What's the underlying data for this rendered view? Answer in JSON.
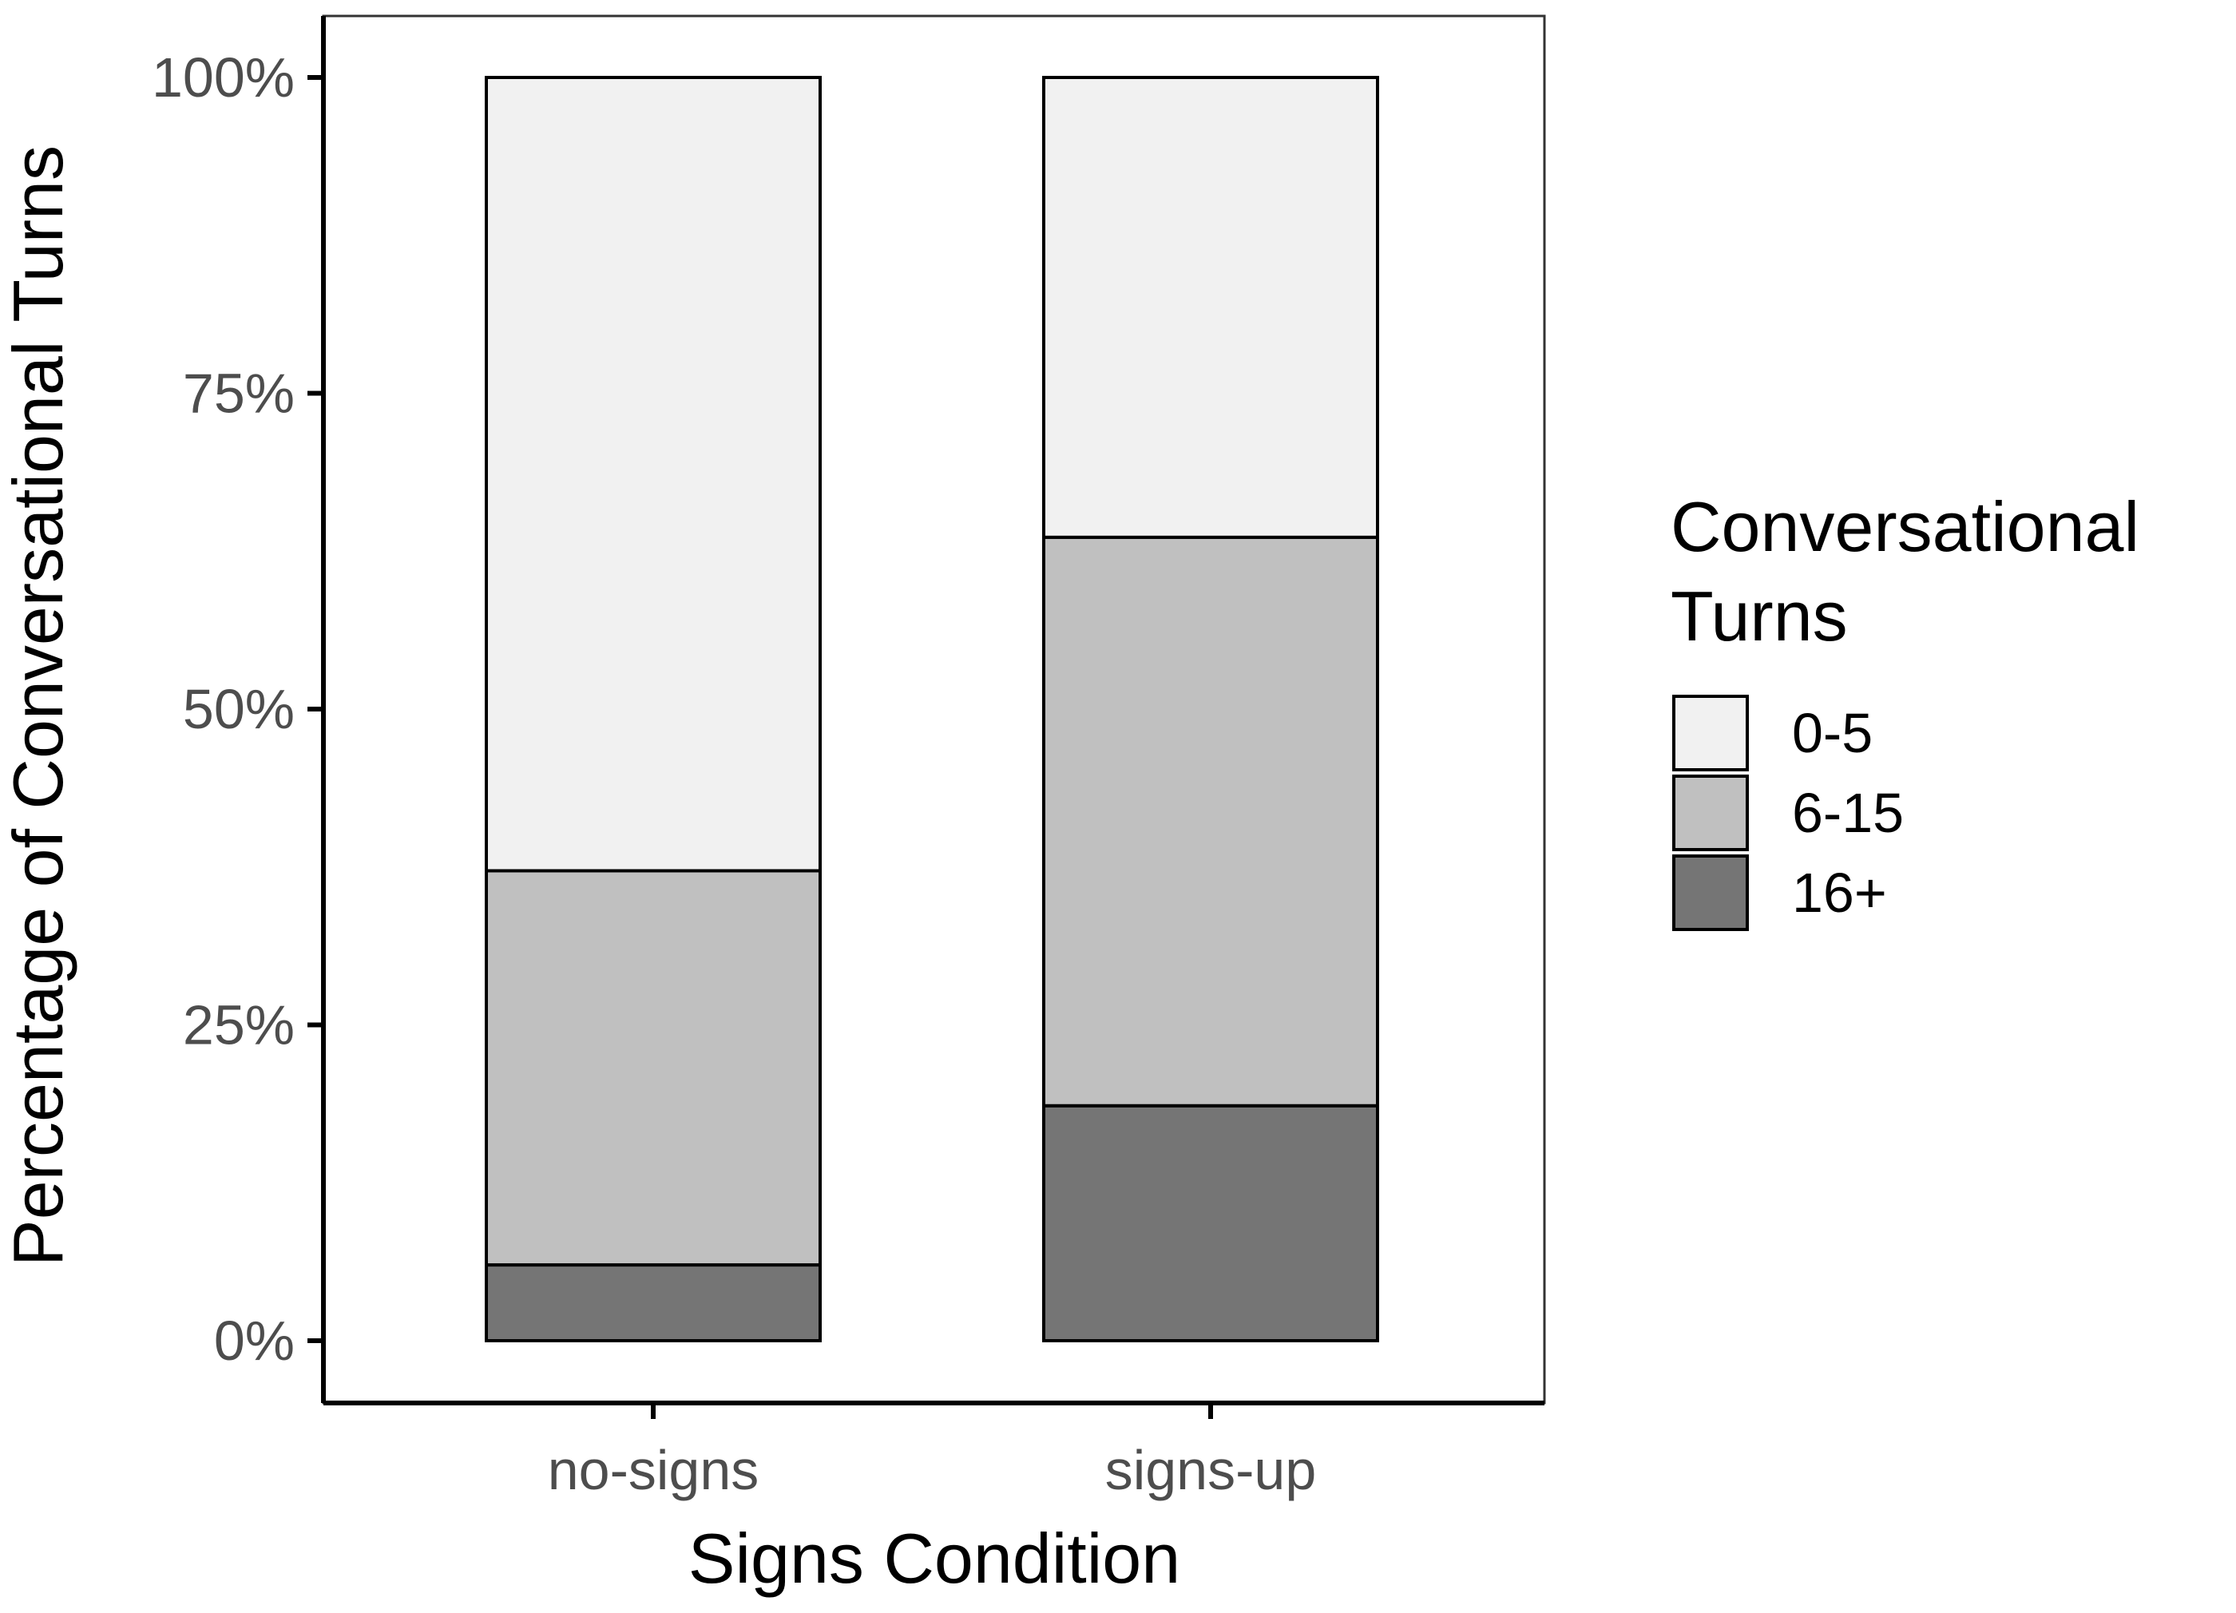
{
  "chart_data": {
    "type": "bar",
    "stacked": true,
    "orientation": "vertical",
    "normalized_to_percent": true,
    "categories": [
      "no-signs",
      "signs-up"
    ],
    "series": [
      {
        "name": "16+",
        "values": [
          6,
          18.6
        ],
        "color": "#757575"
      },
      {
        "name": "6-15",
        "values": [
          31.2,
          45
        ],
        "color": "#c0c0c0"
      },
      {
        "name": "0-5",
        "values": [
          62.8,
          36.4
        ],
        "color": "#f1f1f1"
      }
    ],
    "xlabel": "Signs Condition",
    "ylabel": "Percentage of Conversational Turns",
    "ylim": [
      0,
      100
    ],
    "y_ticks": [
      {
        "value": 0,
        "label": "0%"
      },
      {
        "value": 25,
        "label": "25%"
      },
      {
        "value": 50,
        "label": "50%"
      },
      {
        "value": 75,
        "label": "75%"
      },
      {
        "value": 100,
        "label": "100%"
      }
    ],
    "grid": false,
    "legend": {
      "title_lines": [
        "Conversational",
        "Turns"
      ],
      "position": "right",
      "items": [
        {
          "label": "0-5",
          "color": "#f1f1f1"
        },
        {
          "label": "6-15",
          "color": "#c0c0c0"
        },
        {
          "label": "16+",
          "color": "#757575"
        }
      ]
    }
  }
}
